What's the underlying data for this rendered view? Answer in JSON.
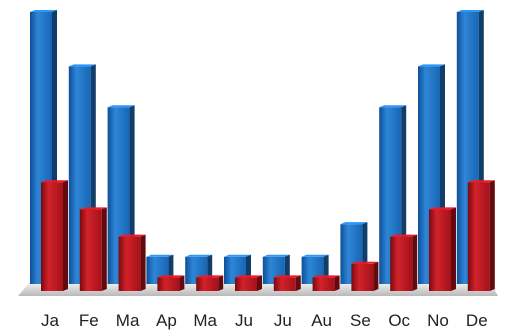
{
  "chart_data": {
    "type": "bar",
    "categories": [
      "Ja",
      "Fe",
      "Ma",
      "Ap",
      "Ma",
      "Ju",
      "Ju",
      "Au",
      "Se",
      "Oc",
      "No",
      "De"
    ],
    "series": [
      {
        "color": "#1f6fbf",
        "values": [
          100,
          80,
          65,
          10,
          10,
          10,
          10,
          10,
          22,
          65,
          80,
          100
        ]
      },
      {
        "color": "#b5121b",
        "values": [
          40,
          30,
          20,
          5,
          5,
          5,
          5,
          5,
          10,
          20,
          30,
          40
        ]
      }
    ],
    "ylim": [
      0,
      100
    ],
    "grid": false,
    "legend": "none",
    "style": "3d"
  }
}
